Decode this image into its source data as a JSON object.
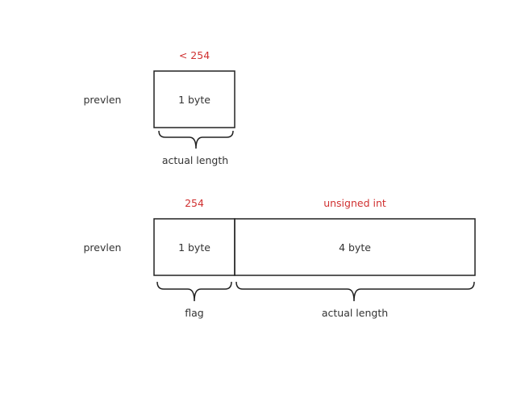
{
  "diagram": {
    "colors": {
      "text": "#333333",
      "accent": "#d03030",
      "stroke": "#222222",
      "background": "#ffffff"
    },
    "first": {
      "row_label": "prevlen",
      "field_label": "1 byte",
      "value_annotation": "< 254",
      "brace_label": "actual length"
    },
    "second": {
      "row_label": "prevlen",
      "flag_field_label": "1 byte",
      "flag_value_annotation": "254",
      "flag_brace_label": "flag",
      "length_field_label": "4 byte",
      "length_value_annotation": "unsigned int",
      "length_brace_label": "actual length"
    }
  }
}
